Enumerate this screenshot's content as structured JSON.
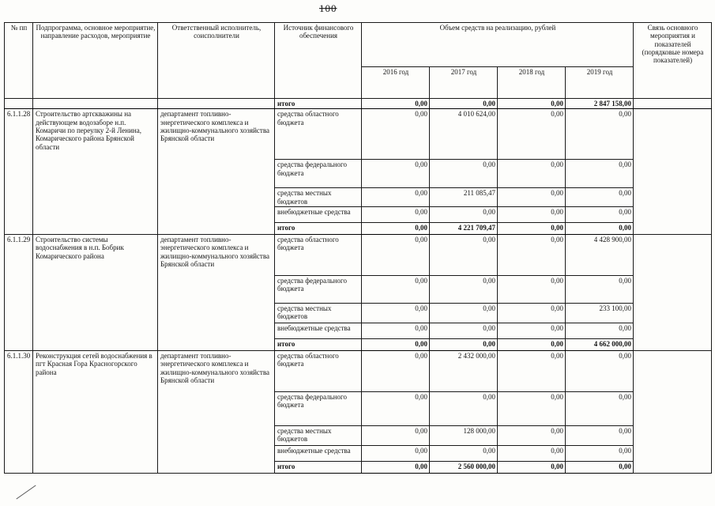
{
  "page": {
    "number": "100"
  },
  "table": {
    "headers": {
      "num": "№ пп",
      "program": "Подпрограмма, основное мероприятие, направление расходов, мероприятие",
      "executor": "Ответственный исполнитель, соисполнители",
      "source": "Источник финансового обеспечения",
      "volume": "Объем средств на реализацию, рублей",
      "years": [
        "2016 год",
        "2017 год",
        "2018 год",
        "2019 год"
      ],
      "link": "Связь основного мероприятия и показателей (порядковые номера показателей)"
    },
    "carry_total": {
      "label": "итого",
      "values": [
        "0,00",
        "0,00",
        "0,00",
        "2 847 158,00"
      ]
    },
    "rows": [
      {
        "num": "6.1.1.28",
        "program": "Строительство артскважины на действующем водозаборе н.п. Комаричи по переулку 2-й Ленина, Комарического района Брянской области",
        "executor": "департамент топливно-энергетического комплекса и жилищно-коммунального хозяйства Брянской области",
        "sources": [
          {
            "label": "средства областного бюджета",
            "values": [
              "0,00",
              "4 010 624,00",
              "0,00",
              "0,00"
            ]
          },
          {
            "label": "средства федерального бюджета",
            "values": [
              "0,00",
              "0,00",
              "0,00",
              "0,00"
            ]
          },
          {
            "label": "средства местных бюджетов",
            "values": [
              "0,00",
              "211 085,47",
              "0,00",
              "0,00"
            ]
          },
          {
            "label": "внебюджетные средства",
            "values": [
              "0,00",
              "0,00",
              "0,00",
              "0,00"
            ]
          },
          {
            "label": "итого",
            "values": [
              "0,00",
              "4 221 709,47",
              "0,00",
              "0,00"
            ]
          }
        ]
      },
      {
        "num": "6.1.1.29",
        "program": "Строительство системы водоснабжения в н.п. Бобрик Комарического района",
        "executor": "департамент топливно-энергетического комплекса и жилищно-коммунального хозяйства Брянской области",
        "sources": [
          {
            "label": "средства областного бюджета",
            "values": [
              "0,00",
              "0,00",
              "0,00",
              "4 428 900,00"
            ]
          },
          {
            "label": "средства федерального бюджета",
            "values": [
              "0,00",
              "0,00",
              "0,00",
              "0,00"
            ]
          },
          {
            "label": "средства местных бюджетов",
            "values": [
              "0,00",
              "0,00",
              "0,00",
              "233 100,00"
            ]
          },
          {
            "label": "внебюджетные средства",
            "values": [
              "0,00",
              "0,00",
              "0,00",
              "0,00"
            ]
          },
          {
            "label": "итого",
            "values": [
              "0,00",
              "0,00",
              "0,00",
              "4 662 000,00"
            ]
          }
        ]
      },
      {
        "num": "6.1.1.30",
        "program": "Реконструкция сетей водоснабжения в пгт Красная Гора Красногорского района",
        "executor": "департамент топливно-энергетического комплекса и жилищно-коммунального хозяйства Брянской области",
        "sources": [
          {
            "label": "средства областного бюджета",
            "values": [
              "0,00",
              "2 432 000,00",
              "0,00",
              "0,00"
            ]
          },
          {
            "label": "средства федерального бюджета",
            "values": [
              "0,00",
              "0,00",
              "0,00",
              "0,00"
            ]
          },
          {
            "label": "средства местных бюджетов",
            "values": [
              "0,00",
              "128 000,00",
              "0,00",
              "0,00"
            ]
          },
          {
            "label": "внебюджетные средства",
            "values": [
              "0,00",
              "0,00",
              "0,00",
              "0,00"
            ]
          },
          {
            "label": "итого",
            "values": [
              "0,00",
              "2 560 000,00",
              "0,00",
              "0,00"
            ]
          }
        ]
      }
    ]
  }
}
